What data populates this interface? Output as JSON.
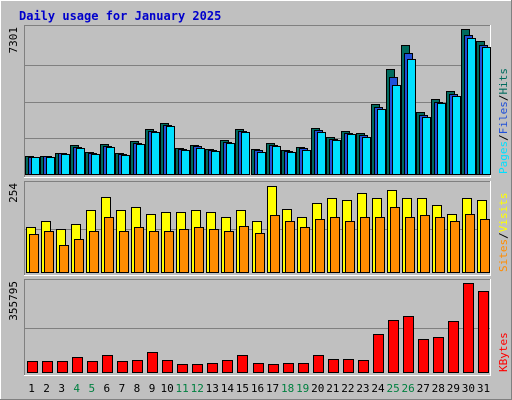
{
  "chart_data": {
    "type": "bar",
    "title": "Daily usage for January 2025",
    "colors": {
      "background": "#c0c0c0",
      "title": "#0000cc",
      "hits": "#006b5e",
      "files": "#2050d8",
      "pages": "#00e0ff",
      "visits": "#ffff00",
      "sites": "#ff8c00",
      "kbytes": "#ff0000",
      "weekend_label": "#008040",
      "weekday_label": "#000000"
    },
    "categories": [
      "1",
      "2",
      "3",
      "4",
      "5",
      "6",
      "7",
      "8",
      "9",
      "10",
      "11",
      "12",
      "13",
      "14",
      "15",
      "16",
      "17",
      "18",
      "19",
      "20",
      "21",
      "22",
      "23",
      "24",
      "25",
      "26",
      "27",
      "28",
      "29",
      "30",
      "31"
    ],
    "weekend_days": [
      "4",
      "5",
      "11",
      "12",
      "18",
      "19",
      "25",
      "26"
    ],
    "panels": [
      {
        "id": "hits-files-pages",
        "max_label": "7301",
        "ylim": [
          0,
          7301
        ],
        "series": [
          {
            "name": "Hits",
            "color": "#006b5e",
            "values": [
              900,
              930,
              1060,
              1460,
              1100,
              1500,
              1050,
              1640,
              2260,
              2550,
              1320,
              1470,
              1270,
              1700,
              2260,
              1250,
              1550,
              1230,
              1350,
              2300,
              1840,
              2160,
              2050,
              3500,
              5300,
              6500,
              3100,
              3800,
              4200,
              7300,
              6700
            ]
          },
          {
            "name": "Files",
            "color": "#2050d8",
            "values": [
              880,
              900,
              1040,
              1380,
              1060,
              1420,
              1020,
              1560,
              2160,
              2450,
              1260,
              1400,
              1210,
              1620,
              2180,
              1200,
              1480,
              1170,
              1290,
              2200,
              1760,
              2080,
              1950,
              3350,
              4900,
              6100,
              2950,
              3650,
              4050,
              7000,
              6500
            ]
          },
          {
            "name": "Pages",
            "color": "#00e0ff",
            "values": [
              850,
              860,
              1000,
              1300,
              1000,
              1350,
              980,
              1500,
              2100,
              2400,
              1200,
              1330,
              1150,
              1560,
              2120,
              1130,
              1400,
              1100,
              1220,
              2120,
              1700,
              2000,
              1880,
              3250,
              4500,
              5800,
              2850,
              3550,
              3950,
              6850,
              6400
            ]
          }
        ],
        "legend": [
          "Pages",
          "Files",
          "Hits"
        ]
      },
      {
        "id": "sites-visits",
        "max_label": "254",
        "ylim": [
          0,
          254
        ],
        "series": [
          {
            "name": "Visits",
            "color": "#ffff00",
            "values": [
              130,
              150,
              125,
              140,
              180,
              220,
              180,
              190,
              170,
              175,
              175,
              180,
              175,
              160,
              180,
              150,
              250,
              185,
              160,
              200,
              215,
              210,
              230,
              215,
              240,
              215,
              215,
              195,
              170,
              215,
              210
            ]
          },
          {
            "name": "Sites",
            "color": "#ff8c00",
            "values": [
              110,
              120,
              80,
              95,
              120,
              160,
              120,
              130,
              120,
              120,
              125,
              130,
              125,
              120,
              135,
              115,
              165,
              150,
              130,
              155,
              160,
              150,
              160,
              160,
              190,
              160,
              165,
              160,
              150,
              170,
              155
            ]
          }
        ],
        "legend": [
          "Sites",
          "Visits"
        ]
      },
      {
        "id": "kbytes",
        "max_label": "355795",
        "ylim": [
          0,
          355795
        ],
        "series": [
          {
            "name": "KBytes",
            "color": "#ff0000",
            "values": [
              43000,
              43000,
              43000,
              58000,
              42000,
              66000,
              45000,
              49000,
              79000,
              49000,
              33000,
              33000,
              35000,
              49000,
              66000,
              34000,
              33000,
              36000,
              36000,
              66000,
              51000,
              53000,
              48000,
              150000,
              209000,
              223000,
              130000,
              138000,
              203000,
              355795,
              325000
            ]
          }
        ],
        "legend": [
          "KBytes"
        ]
      }
    ]
  }
}
